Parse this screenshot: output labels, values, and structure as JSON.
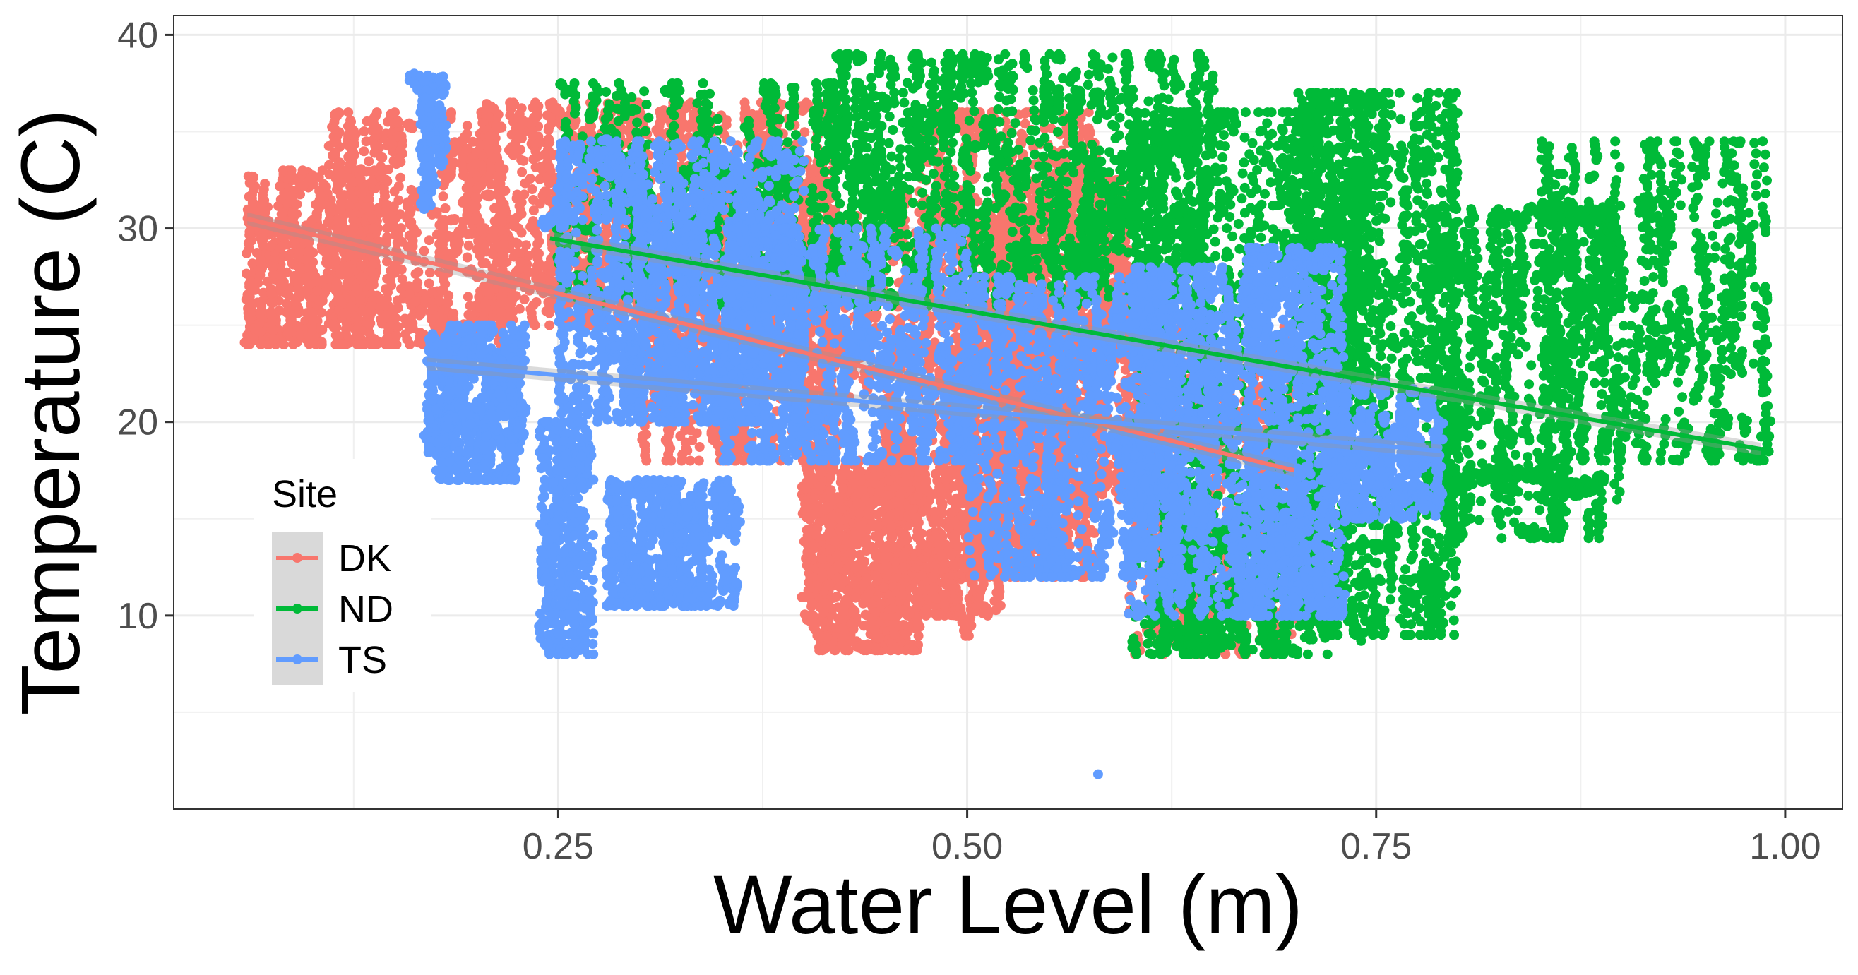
{
  "chart_data": {
    "type": "scatter",
    "xlabel": "Water Level (m)",
    "ylabel": "Temperature (C)",
    "xlim": [
      0.015,
      1.035
    ],
    "ylim": [
      0.0,
      41.0
    ],
    "x_ticks": [
      0.25,
      0.5,
      0.75,
      1.0
    ],
    "x_tick_labels": [
      "0.25",
      "0.50",
      "0.75",
      "1.00"
    ],
    "y_ticks": [
      10,
      20,
      30,
      40
    ],
    "y_tick_labels": [
      "10",
      "20",
      "30",
      "40"
    ],
    "grid": true,
    "legend": {
      "title": "Site",
      "position": "left-center",
      "entries": [
        "DK",
        "ND",
        "TS"
      ]
    },
    "series": [
      {
        "name": "DK",
        "color": "#F8766D",
        "x_range": [
          0.06,
          0.7
        ],
        "y_range": [
          8.0,
          36.8
        ],
        "trend": {
          "x": [
            0.06,
            0.7
          ],
          "y": [
            30.5,
            17.5
          ]
        },
        "clusters": [
          {
            "x": [
              0.06,
              0.14
            ],
            "y": [
              24.0,
              33.0
            ],
            "n": 160
          },
          {
            "x": [
              0.11,
              0.22
            ],
            "y": [
              24.0,
              36.0
            ],
            "n": 170
          },
          {
            "x": [
              0.2,
              0.3
            ],
            "y": [
              25.0,
              36.5
            ],
            "n": 150
          },
          {
            "x": [
              0.3,
              0.42
            ],
            "y": [
              18.0,
              36.5
            ],
            "n": 230
          },
          {
            "x": [
              0.4,
              0.47
            ],
            "y": [
              8.2,
              18.0
            ],
            "n": 210
          },
          {
            "x": [
              0.45,
              0.52
            ],
            "y": [
              10.0,
              20.0
            ],
            "n": 140
          },
          {
            "x": [
              0.47,
              0.58
            ],
            "y": [
              12.0,
              36.0
            ],
            "n": 280
          },
          {
            "x": [
              0.52,
              0.6
            ],
            "y": [
              16.0,
              32.5
            ],
            "n": 200
          },
          {
            "x": [
              0.6,
              0.7
            ],
            "y": [
              8.0,
              25.0
            ],
            "n": 180
          },
          {
            "x": [
              0.4,
              0.55
            ],
            "y": [
              20.0,
              32.0
            ],
            "n": 150
          }
        ],
        "paths": [
          {
            "x": [
              0.45,
              0.48,
              0.5,
              0.52,
              0.55
            ],
            "y": [
              10.0,
              14.0,
              9.0,
              15.0,
              12.0
            ]
          }
        ]
      },
      {
        "name": "ND",
        "color": "#00BA38",
        "x_range": [
          0.245,
          0.985
        ],
        "y_range": [
          8.0,
          39.0
        ],
        "trend": {
          "x": [
            0.245,
            0.985
          ],
          "y": [
            29.5,
            18.6
          ]
        },
        "clusters": [
          {
            "x": [
              0.25,
              0.45
            ],
            "y": [
              26.0,
              37.5
            ],
            "n": 200
          },
          {
            "x": [
              0.42,
              0.65
            ],
            "y": [
              26.0,
              39.0
            ],
            "n": 320
          },
          {
            "x": [
              0.6,
              0.75
            ],
            "y": [
              8.0,
              36.0
            ],
            "n": 300
          },
          {
            "x": [
              0.7,
              0.8
            ],
            "y": [
              9.0,
              37.0
            ],
            "n": 300
          },
          {
            "x": [
              0.78,
              0.9
            ],
            "y": [
              14.0,
              31.0
            ],
            "n": 160
          },
          {
            "x": [
              0.85,
              0.99
            ],
            "y": [
              18.0,
              34.5
            ],
            "n": 180
          },
          {
            "x": [
              0.62,
              0.7
            ],
            "y": [
              8.0,
              16.0
            ],
            "n": 100
          }
        ],
        "paths": [
          {
            "x": [
              0.8,
              0.84,
              0.87,
              0.89
            ],
            "y": [
              17.0,
              17.5,
              16.5,
              17.0
            ]
          },
          {
            "x": [
              0.82,
              0.86,
              0.89,
              0.9
            ],
            "y": [
              30.5,
              31.0,
              30.5,
              28.8
            ]
          }
        ]
      },
      {
        "name": "TS",
        "color": "#619CFF",
        "x_range": [
          0.17,
          0.79
        ],
        "y_range": [
          1.8,
          38.0
        ],
        "trend": {
          "x": [
            0.17,
            0.79
          ],
          "y": [
            23.0,
            18.5
          ]
        },
        "outliers": [
          {
            "x": 0.58,
            "y": 1.8
          }
        ],
        "clusters": [
          {
            "x": [
              0.17,
              0.23
            ],
            "y": [
              17.0,
              25.0
            ],
            "n": 150
          },
          {
            "x": [
              0.16,
              0.18
            ],
            "y": [
              31.0,
              38.0
            ],
            "n": 30
          },
          {
            "x": [
              0.24,
              0.27
            ],
            "y": [
              8.0,
              20.0
            ],
            "n": 90
          },
          {
            "x": [
              0.25,
              0.4
            ],
            "y": [
              20.0,
              34.5
            ],
            "n": 320
          },
          {
            "x": [
              0.28,
              0.36
            ],
            "y": [
              10.5,
              17.0
            ],
            "n": 160
          },
          {
            "x": [
              0.35,
              0.5
            ],
            "y": [
              18.0,
              30.0
            ],
            "n": 250
          },
          {
            "x": [
              0.5,
              0.63
            ],
            "y": [
              12.0,
              27.5
            ],
            "n": 280
          },
          {
            "x": [
              0.6,
              0.7
            ],
            "y": [
              10.0,
              28.0
            ],
            "n": 240
          },
          {
            "x": [
              0.67,
              0.73
            ],
            "y": [
              10.0,
              29.0
            ],
            "n": 160
          },
          {
            "x": [
              0.73,
              0.79
            ],
            "y": [
              15.0,
              22.0
            ],
            "n": 100
          }
        ],
        "paths": [
          {
            "x": [
              0.24,
              0.28,
              0.32,
              0.36,
              0.4
            ],
            "y": [
              30.0,
              34.5,
              28.0,
              33.0,
              27.0
            ]
          },
          {
            "x": [
              0.6,
              0.65,
              0.7,
              0.72
            ],
            "y": [
              26.0,
              25.0,
              28.5,
              28.0
            ]
          }
        ]
      }
    ]
  }
}
